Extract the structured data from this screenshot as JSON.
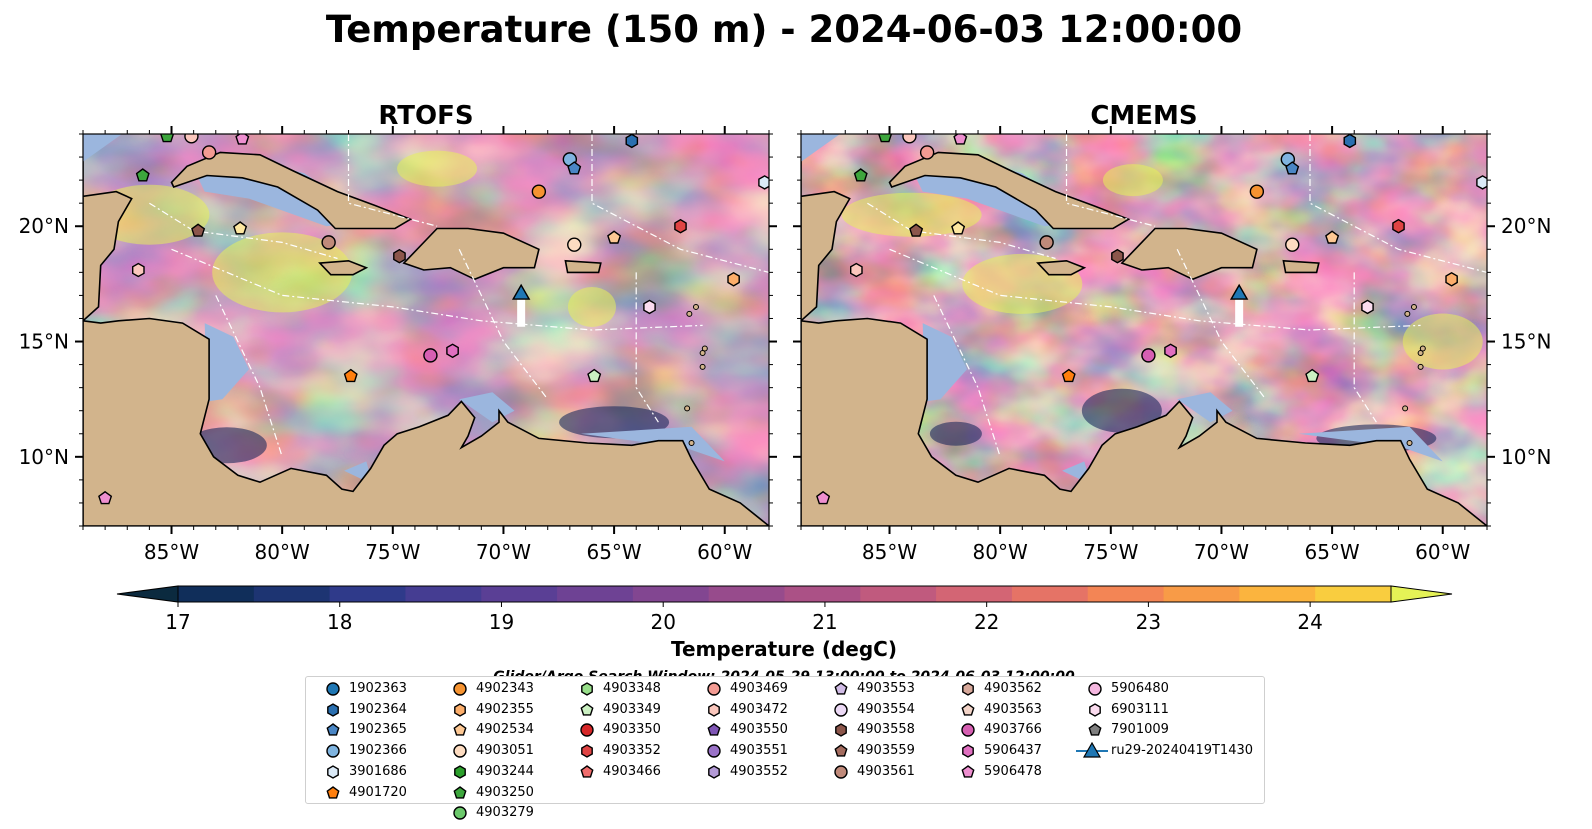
{
  "figure": {
    "title": "Temperature (150 m) - 2024-06-03 12:00:00",
    "search_window": "Glider/Argo Search Window: 2024-05-29 13:00:00 to 2024-06-03 12:00:00"
  },
  "panels": [
    {
      "title": "RTOFS",
      "id": "rtofs"
    },
    {
      "title": "CMEMS",
      "id": "cmems"
    }
  ],
  "axes": {
    "lon_ticks": [
      "85°W",
      "80°W",
      "75°W",
      "70°W",
      "65°W",
      "60°W"
    ],
    "lon_values": [
      -85,
      -80,
      -75,
      -70,
      -65,
      -60
    ],
    "lat_ticks": [
      "20°N",
      "15°N",
      "10°N"
    ],
    "lat_values": [
      20,
      15,
      10
    ],
    "lon_range": [
      -89,
      -58
    ],
    "lat_range": [
      7,
      24
    ]
  },
  "colorbar": {
    "label": "Temperature (degC)",
    "ticks": [
      "17",
      "18",
      "19",
      "20",
      "21",
      "22",
      "23",
      "24"
    ],
    "tick_values": [
      17,
      18,
      19,
      20,
      21,
      22,
      23,
      24
    ],
    "range": [
      17,
      24.5
    ],
    "levels": 16,
    "extend": "both",
    "colors": [
      "#0b2a3f",
      "#102e5a",
      "#1d3472",
      "#2f3a8a",
      "#453d92",
      "#5a3f95",
      "#6e4294",
      "#824691",
      "#974b8c",
      "#ab5186",
      "#c05a7e",
      "#d36574",
      "#e57366",
      "#f38555",
      "#f89b47",
      "#fbb43e",
      "#f9cd3f",
      "#f0e54b",
      "#e5f256"
    ]
  },
  "map_colors": {
    "land": "#d2b48c",
    "shelf": "#9bb6de",
    "deep_outside": "#0e2a38",
    "coast": "#000000",
    "eez": "#ffffff"
  },
  "legend": {
    "items": [
      {
        "label": "1902363",
        "shape": "circle",
        "color": "#1f77b4"
      },
      {
        "label": "1902364",
        "shape": "hexagon",
        "color": "#2a6fb0"
      },
      {
        "label": "1902365",
        "shape": "pentagon",
        "color": "#4a86c5"
      },
      {
        "label": "1902366",
        "shape": "circle",
        "color": "#7fb4e0"
      },
      {
        "label": "3901686",
        "shape": "hexagon",
        "color": "#dbeaf7"
      },
      {
        "label": "4901720",
        "shape": "pentagon",
        "color": "#ff7f0e"
      },
      {
        "label": "4902343",
        "shape": "circle",
        "color": "#f59331"
      },
      {
        "label": "4902355",
        "shape": "hexagon",
        "color": "#fcae6b"
      },
      {
        "label": "4902534",
        "shape": "pentagon",
        "color": "#fdc894"
      },
      {
        "label": "4903051",
        "shape": "circle",
        "color": "#fddcc1"
      },
      {
        "label": "4903244",
        "shape": "hexagon",
        "color": "#2ca02c"
      },
      {
        "label": "4903250",
        "shape": "pentagon",
        "color": "#3da63d"
      },
      {
        "label": "4903279",
        "shape": "circle",
        "color": "#6bc86b"
      },
      {
        "label": "4903348",
        "shape": "hexagon",
        "color": "#98df8a"
      },
      {
        "label": "4903349",
        "shape": "pentagon",
        "color": "#cbf0c2"
      },
      {
        "label": "4903350",
        "shape": "circle",
        "color": "#d62728"
      },
      {
        "label": "4903352",
        "shape": "hexagon",
        "color": "#e04444"
      },
      {
        "label": "4903466",
        "shape": "pentagon",
        "color": "#f06d6d"
      },
      {
        "label": "4903469",
        "shape": "circle",
        "color": "#f39b93"
      },
      {
        "label": "4903472",
        "shape": "hexagon",
        "color": "#fbc7bd"
      },
      {
        "label": "4903550",
        "shape": "pentagon",
        "color": "#7f55b5"
      },
      {
        "label": "4903551",
        "shape": "circle",
        "color": "#9a72c8"
      },
      {
        "label": "4903552",
        "shape": "hexagon",
        "color": "#b39ad6"
      },
      {
        "label": "4903553",
        "shape": "pentagon",
        "color": "#d1bce6"
      },
      {
        "label": "4903554",
        "shape": "circle",
        "color": "#ecd9f5"
      },
      {
        "label": "4903558",
        "shape": "hexagon",
        "color": "#8c564b"
      },
      {
        "label": "4903559",
        "shape": "pentagon",
        "color": "#a46c5f"
      },
      {
        "label": "4903561",
        "shape": "circle",
        "color": "#c08a7a"
      },
      {
        "label": "4903562",
        "shape": "hexagon",
        "color": "#d7a89a"
      },
      {
        "label": "4903563",
        "shape": "pentagon",
        "color": "#f3d4c8"
      },
      {
        "label": "4903766",
        "shape": "circle",
        "color": "#d65fb2"
      },
      {
        "label": "5906437",
        "shape": "hexagon",
        "color": "#e06fc0"
      },
      {
        "label": "5906478",
        "shape": "pentagon",
        "color": "#ee8fd0"
      },
      {
        "label": "5906480",
        "shape": "circle",
        "color": "#f5b7e0"
      },
      {
        "label": "6903111",
        "shape": "hexagon",
        "color": "#fbdcef"
      },
      {
        "label": "7901009",
        "shape": "pentagon",
        "color": "#7f7f7f"
      },
      {
        "label": "ru29-20240419T1430",
        "shape": "triangle-line",
        "color": "#1f77b4"
      }
    ]
  },
  "markers": [
    {
      "lon": -85.2,
      "lat": 23.9,
      "shape": "pentagon",
      "color": "#3da63d"
    },
    {
      "lon": -84.1,
      "lat": 23.9,
      "shape": "circle",
      "color": "#fbc7bd"
    },
    {
      "lon": -83.3,
      "lat": 23.2,
      "shape": "circle",
      "color": "#f39b93"
    },
    {
      "lon": -81.8,
      "lat": 23.8,
      "shape": "pentagon",
      "color": "#ee8fd0"
    },
    {
      "lon": -86.3,
      "lat": 22.2,
      "shape": "pentagon",
      "color": "#3da63d"
    },
    {
      "lon": -83.8,
      "lat": 19.8,
      "shape": "pentagon",
      "color": "#8c564b"
    },
    {
      "lon": -81.9,
      "lat": 19.9,
      "shape": "pentagon",
      "color": "#fde7a0"
    },
    {
      "lon": -86.5,
      "lat": 18.1,
      "shape": "hexagon",
      "color": "#fbc7bd"
    },
    {
      "lon": -77.9,
      "lat": 19.3,
      "shape": "circle",
      "color": "#c08a7a"
    },
    {
      "lon": -74.7,
      "lat": 18.7,
      "shape": "hexagon",
      "color": "#8c564b"
    },
    {
      "lon": -76.9,
      "lat": 13.5,
      "shape": "pentagon",
      "color": "#ff7f0e"
    },
    {
      "lon": -73.3,
      "lat": 14.4,
      "shape": "circle",
      "color": "#d65fb2"
    },
    {
      "lon": -72.3,
      "lat": 14.6,
      "shape": "hexagon",
      "color": "#e06fc0"
    },
    {
      "lon": -68.4,
      "lat": 21.5,
      "shape": "circle",
      "color": "#f59331"
    },
    {
      "lon": -67.0,
      "lat": 22.9,
      "shape": "circle",
      "color": "#7fb4e0"
    },
    {
      "lon": -66.8,
      "lat": 22.5,
      "shape": "pentagon",
      "color": "#4a86c5"
    },
    {
      "lon": -64.2,
      "lat": 23.7,
      "shape": "hexagon",
      "color": "#2a6fb0"
    },
    {
      "lon": -66.8,
      "lat": 19.2,
      "shape": "circle",
      "color": "#fddcc1"
    },
    {
      "lon": -65.0,
      "lat": 19.5,
      "shape": "pentagon",
      "color": "#fdc894"
    },
    {
      "lon": -62.0,
      "lat": 20.0,
      "shape": "hexagon",
      "color": "#e04444"
    },
    {
      "lon": -59.6,
      "lat": 17.7,
      "shape": "hexagon",
      "color": "#fcae6b"
    },
    {
      "lon": -63.4,
      "lat": 16.5,
      "shape": "hexagon",
      "color": "#fbdcef"
    },
    {
      "lon": -65.9,
      "lat": 13.5,
      "shape": "pentagon",
      "color": "#cbf0c2"
    },
    {
      "lon": -58.2,
      "lat": 21.9,
      "shape": "hexagon",
      "color": "#dbeaf7"
    },
    {
      "lon": -88.0,
      "lat": 8.2,
      "shape": "pentagon",
      "color": "#ee8fd0"
    }
  ],
  "glider": {
    "lon": -69.2,
    "lat": 17.1,
    "track_to_lat": 15.9
  }
}
